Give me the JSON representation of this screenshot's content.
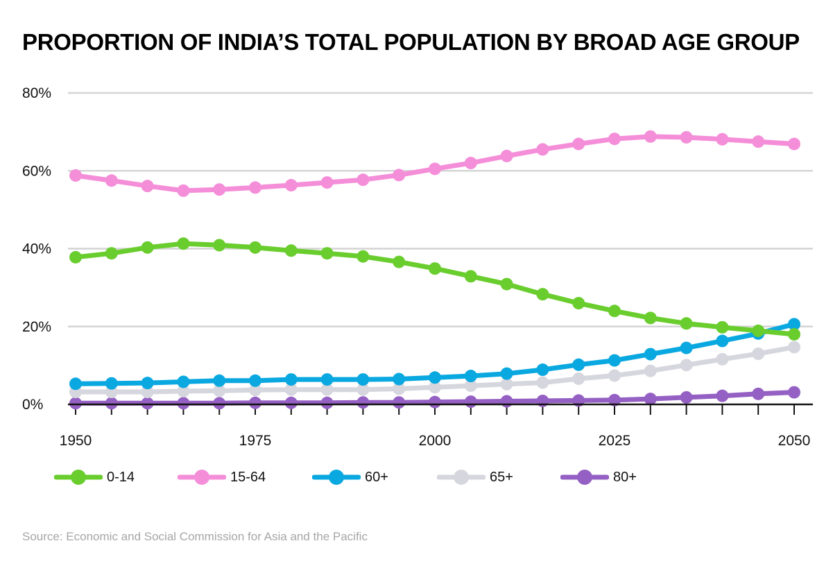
{
  "title": "PROPORTION OF INDIA’S TOTAL POPULATION BY BROAD AGE GROUP",
  "source": "Source: Economic and Social Commission for Asia and the Pacific",
  "chart_data": {
    "type": "line",
    "title": "PROPORTION OF INDIA’S TOTAL POPULATION BY BROAD AGE GROUP",
    "xlabel": "",
    "ylabel": "",
    "xlim": [
      1950,
      2050
    ],
    "ylim": [
      0,
      80
    ],
    "grid": true,
    "legend": "bottom",
    "x_ticks": [
      "1950",
      "1975",
      "2000",
      "2025",
      "2050"
    ],
    "x_tick_values": [
      1950,
      1975,
      2000,
      2025,
      2050
    ],
    "y_ticks": [
      "0%",
      "20%",
      "40%",
      "60%",
      "80%"
    ],
    "y_tick_values": [
      0,
      20,
      40,
      60,
      80
    ],
    "x": [
      1950,
      1955,
      1960,
      1965,
      1970,
      1975,
      1980,
      1985,
      1990,
      1995,
      2000,
      2005,
      2010,
      2015,
      2020,
      2025,
      2030,
      2035,
      2040,
      2045,
      2050
    ],
    "series": [
      {
        "name": "0-14",
        "color": "#6acd2e",
        "values": [
          37.8,
          38.8,
          40.3,
          41.3,
          40.9,
          40.3,
          39.5,
          38.8,
          38.0,
          36.6,
          34.9,
          32.9,
          30.9,
          28.3,
          26.0,
          24.0,
          22.2,
          20.8,
          19.8,
          18.9,
          18.0
        ]
      },
      {
        "name": "15-64",
        "color": "#f58ed9",
        "values": [
          58.8,
          57.5,
          56.1,
          54.9,
          55.2,
          55.7,
          56.3,
          57.0,
          57.7,
          58.9,
          60.5,
          62.0,
          63.8,
          65.5,
          66.9,
          68.2,
          68.8,
          68.6,
          68.1,
          67.5,
          66.9
        ]
      },
      {
        "name": "60+",
        "color": "#0aa8e0",
        "values": [
          5.3,
          5.4,
          5.5,
          5.8,
          6.1,
          6.1,
          6.4,
          6.4,
          6.4,
          6.5,
          6.9,
          7.3,
          7.9,
          8.9,
          10.2,
          11.3,
          12.9,
          14.5,
          16.3,
          18.2,
          20.6
        ]
      },
      {
        "name": "65+",
        "color": "#d6d6de",
        "values": [
          3.2,
          3.2,
          3.2,
          3.4,
          3.5,
          3.7,
          3.8,
          3.8,
          3.8,
          4.0,
          4.4,
          4.8,
          5.2,
          5.6,
          6.6,
          7.4,
          8.6,
          10.1,
          11.6,
          13.0,
          14.7
        ]
      },
      {
        "name": "80+",
        "color": "#9560c3",
        "values": [
          0.3,
          0.3,
          0.3,
          0.3,
          0.3,
          0.4,
          0.4,
          0.4,
          0.5,
          0.5,
          0.6,
          0.7,
          0.8,
          0.9,
          1.0,
          1.1,
          1.4,
          1.8,
          2.2,
          2.7,
          3.1
        ]
      }
    ]
  }
}
